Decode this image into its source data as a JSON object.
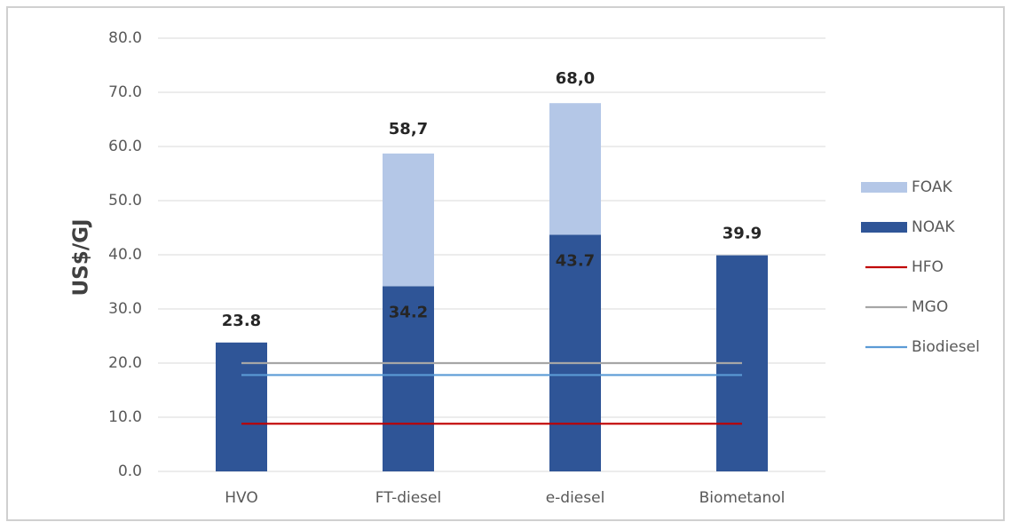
{
  "chart_data": {
    "type": "bar",
    "y_label": "US$/GJ",
    "categories": [
      "HVO",
      "FT-diesel",
      "e-diesel",
      "Biometanol"
    ],
    "series": [
      {
        "name": "NOAK",
        "color": "#2f5597",
        "values": [
          23.8,
          34.2,
          43.7,
          39.9
        ]
      },
      {
        "name": "FOAK",
        "color": "#b4c7e7",
        "values": [
          null,
          24.5,
          24.3,
          null
        ]
      }
    ],
    "totals": [
      null,
      58.7,
      68.0,
      null
    ],
    "total_labels": [
      null,
      "58,7",
      "68,0",
      null
    ],
    "lines": [
      {
        "name": "HFO",
        "color": "#c00000",
        "values": [
          8.8,
          8.8,
          8.8,
          8.8
        ]
      },
      {
        "name": "MGO",
        "color": "#a6a6a6",
        "values": [
          20.0,
          20.0,
          20.0,
          20.0
        ]
      },
      {
        "name": "Biodiesel",
        "color": "#5b9bd5",
        "values": [
          17.8,
          17.8,
          17.8,
          17.8
        ]
      }
    ],
    "legend_order": [
      "FOAK",
      "NOAK",
      "HFO",
      "MGO",
      "Biodiesel"
    ],
    "ylim": [
      0,
      80
    ],
    "yticks": [
      {
        "value": 0,
        "label": "0.0"
      },
      {
        "value": 10,
        "label": "10.0"
      },
      {
        "value": 20,
        "label": "20.0"
      },
      {
        "value": 30,
        "label": "30.0"
      },
      {
        "value": 40,
        "label": "40.0"
      },
      {
        "value": 50,
        "label": "50.0"
      },
      {
        "value": 60,
        "label": "60.0"
      },
      {
        "value": 70,
        "label": "70.0"
      },
      {
        "value": 80,
        "label": "80.0"
      }
    ],
    "grid": true,
    "legend": "right"
  }
}
